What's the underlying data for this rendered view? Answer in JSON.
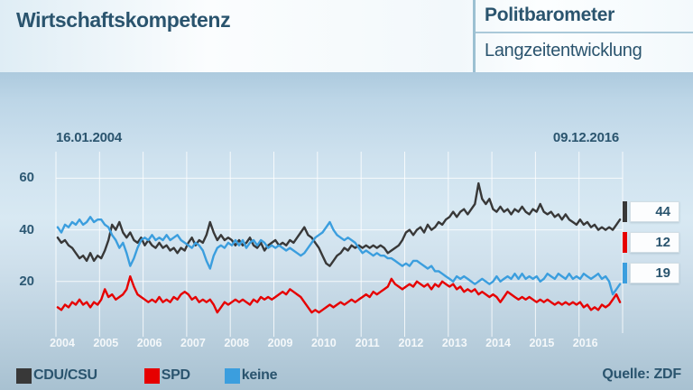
{
  "header": {
    "title": "Wirtschaftskompetenz",
    "brand": "Politbarometer",
    "subtitle": "Langzeitentwicklung"
  },
  "chart": {
    "start_date": "16.01.2004",
    "end_date": "09.12.2016"
  },
  "source": {
    "label": "Quelle: ZDF"
  },
  "colors": {
    "text_dark_blue": "#2a546e",
    "background_top": "#adcade",
    "background_middle": "#d8e9f3",
    "background_bottom": "#a8c1d1",
    "gridline": "#ffffff",
    "value_box_bg": "#fcfdfe"
  },
  "chart_data": {
    "type": "line",
    "title": "Wirtschaftskompetenz",
    "xlabel": "",
    "ylabel": "",
    "legend_position": "bottom-left",
    "grid": true,
    "x_start": 2004.04,
    "x_step": 0.08323,
    "x_axis": {
      "min": 2004,
      "max": 2017,
      "ticks": [
        2004,
        2005,
        2006,
        2007,
        2008,
        2009,
        2010,
        2011,
        2012,
        2013,
        2014,
        2015,
        2016
      ]
    },
    "y_axis": {
      "min": 0,
      "max": 65,
      "ticks": [
        20,
        40,
        60
      ]
    },
    "series": [
      {
        "name": "CDU/CSU",
        "color": "#383838",
        "end_value": 44,
        "values": [
          37,
          35,
          36,
          34,
          33,
          31,
          29,
          30,
          28,
          31,
          28,
          30,
          29,
          32,
          36,
          42,
          40,
          43,
          39,
          37,
          39,
          36,
          35,
          37,
          34,
          36,
          34,
          33,
          35,
          33,
          34,
          32,
          33,
          31,
          33,
          32,
          35,
          37,
          34,
          36,
          35,
          38,
          43,
          39,
          36,
          38,
          36,
          37,
          36,
          34,
          36,
          34,
          35,
          37,
          34,
          33,
          35,
          32,
          34,
          35,
          36,
          34,
          35,
          34,
          36,
          35,
          37,
          39,
          41,
          38,
          37,
          35,
          33,
          30,
          27,
          26,
          28,
          30,
          31,
          33,
          32,
          34,
          33,
          34,
          33,
          34,
          33,
          34,
          33,
          34,
          33,
          31,
          32,
          33,
          34,
          36,
          39,
          40,
          38,
          40,
          41,
          39,
          42,
          40,
          41,
          43,
          42,
          44,
          45,
          47,
          45,
          47,
          48,
          46,
          48,
          50,
          58,
          52,
          50,
          52,
          48,
          47,
          49,
          47,
          48,
          46,
          48,
          47,
          49,
          47,
          46,
          48,
          47,
          50,
          47,
          46,
          47,
          45,
          46,
          44,
          46,
          44,
          43,
          42,
          44,
          42,
          43,
          41,
          42,
          40,
          41,
          40,
          41,
          40,
          42,
          44
        ]
      },
      {
        "name": "SPD",
        "color": "#e60000",
        "end_value": 12,
        "values": [
          10,
          9,
          11,
          10,
          12,
          11,
          13,
          11,
          12,
          10,
          12,
          11,
          13,
          17,
          14,
          15,
          13,
          14,
          15,
          17,
          22,
          18,
          15,
          14,
          13,
          12,
          13,
          12,
          14,
          12,
          13,
          12,
          14,
          13,
          15,
          16,
          15,
          13,
          14,
          12,
          13,
          12,
          13,
          11,
          8,
          10,
          12,
          11,
          12,
          13,
          12,
          13,
          12,
          11,
          13,
          12,
          14,
          13,
          14,
          13,
          14,
          15,
          16,
          15,
          17,
          16,
          15,
          14,
          12,
          10,
          8,
          9,
          8,
          9,
          10,
          11,
          10,
          11,
          12,
          11,
          12,
          13,
          12,
          13,
          14,
          15,
          14,
          16,
          15,
          16,
          17,
          18,
          21,
          19,
          18,
          17,
          18,
          19,
          18,
          20,
          19,
          18,
          19,
          17,
          19,
          18,
          20,
          19,
          18,
          19,
          17,
          18,
          16,
          17,
          16,
          17,
          15,
          16,
          15,
          14,
          15,
          14,
          12,
          14,
          16,
          15,
          14,
          13,
          14,
          13,
          14,
          13,
          12,
          13,
          12,
          13,
          12,
          11,
          12,
          11,
          12,
          11,
          12,
          11,
          12,
          10,
          11,
          9,
          10,
          9,
          11,
          10,
          11,
          13,
          15,
          12
        ]
      },
      {
        "name": "keine",
        "color": "#3b9ede",
        "end_value": 19,
        "values": [
          41,
          39,
          42,
          41,
          43,
          42,
          44,
          42,
          43,
          45,
          43,
          44,
          44,
          42,
          41,
          38,
          36,
          33,
          35,
          31,
          26,
          29,
          33,
          36,
          37,
          36,
          38,
          36,
          37,
          36,
          38,
          36,
          37,
          38,
          36,
          35,
          34,
          33,
          35,
          34,
          32,
          28,
          25,
          30,
          33,
          34,
          33,
          35,
          34,
          36,
          34,
          36,
          33,
          35,
          36,
          34,
          36,
          35,
          33,
          34,
          33,
          34,
          33,
          32,
          33,
          32,
          31,
          30,
          31,
          33,
          35,
          37,
          38,
          39,
          41,
          43,
          40,
          38,
          37,
          36,
          37,
          36,
          35,
          33,
          31,
          32,
          31,
          30,
          31,
          30,
          30,
          29,
          29,
          28,
          27,
          26,
          27,
          26,
          28,
          28,
          27,
          26,
          25,
          26,
          24,
          24,
          23,
          22,
          21,
          20,
          22,
          21,
          22,
          21,
          20,
          19,
          20,
          21,
          20,
          19,
          20,
          22,
          20,
          21,
          22,
          21,
          23,
          21,
          23,
          21,
          22,
          21,
          22,
          20,
          21,
          23,
          22,
          21,
          23,
          22,
          21,
          23,
          21,
          22,
          21,
          23,
          22,
          21,
          22,
          23,
          21,
          22,
          20,
          15,
          17,
          19
        ]
      }
    ]
  }
}
